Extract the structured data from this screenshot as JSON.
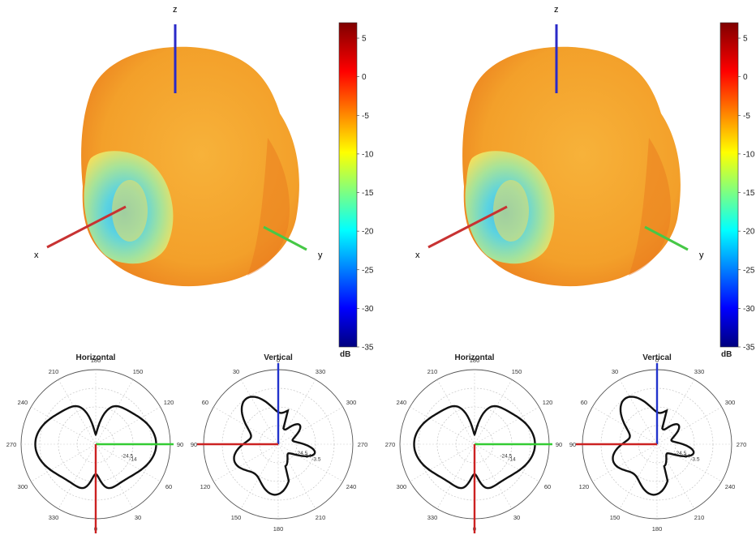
{
  "colorbar": {
    "unit": "dB",
    "ticks": [
      "5",
      "0",
      "-5",
      "-10",
      "-15",
      "-20",
      "-25",
      "-30",
      "-35"
    ],
    "range": [
      -35,
      7
    ],
    "colormap": [
      "#00007f",
      "#0000ff",
      "#007fff",
      "#00ffff",
      "#7fff7f",
      "#ffff00",
      "#ff7f00",
      "#ff0000",
      "#7f0000"
    ]
  },
  "axes3d": {
    "x": {
      "label": "x",
      "color": "#c83232"
    },
    "y": {
      "label": "y",
      "color": "#46c846"
    },
    "z": {
      "label": "z",
      "color": "#2a2ac8"
    }
  },
  "patterns": [
    {
      "surface_colors": {
        "body": "#f5a623",
        "rim": "#e8901e",
        "dip_outer": "#a8e08a",
        "dip_inner": "#66d9d0",
        "dip_core": "#4fc1e9"
      },
      "polar": [
        {
          "title": "Horizontal",
          "angle_labels": [
            "180",
            "150",
            "120",
            "90",
            "60",
            "30",
            "0",
            "330",
            "300",
            "270",
            "240",
            "210"
          ],
          "radial_labels": [
            "-14",
            "-24.5"
          ],
          "axis_colors": {
            "horizontal": "#33cc33",
            "down": "#cc2222"
          }
        },
        {
          "title": "Vertical",
          "angle_labels": [
            "0",
            "330",
            "300",
            "270",
            "240",
            "210",
            "180",
            "150",
            "120",
            "90",
            "60",
            "30"
          ],
          "radial_labels": [
            "-3.5",
            "-14",
            "-24.5"
          ],
          "axis_colors": {
            "up": "#2233cc",
            "left": "#cc2222"
          }
        }
      ]
    },
    {
      "surface_colors": {
        "body": "#f5a623",
        "rim": "#e8901e",
        "dip_outer": "#a8e08a",
        "dip_inner": "#66d9d0",
        "dip_core": "#4fc1e9"
      },
      "polar": [
        {
          "title": "Horizontal",
          "angle_labels": [
            "180",
            "150",
            "120",
            "90",
            "60",
            "30",
            "0",
            "330",
            "300",
            "270",
            "240",
            "210"
          ],
          "radial_labels": [
            "-14",
            "-24.5"
          ],
          "axis_colors": {
            "horizontal": "#33cc33",
            "down": "#cc2222"
          }
        },
        {
          "title": "Vertical",
          "angle_labels": [
            "0",
            "330",
            "300",
            "270",
            "240",
            "210",
            "180",
            "150",
            "120",
            "90",
            "60",
            "30"
          ],
          "radial_labels": [
            "-3.5",
            "-14",
            "-24.5"
          ],
          "axis_colors": {
            "up": "#2233cc",
            "left": "#cc2222"
          }
        }
      ]
    }
  ]
}
